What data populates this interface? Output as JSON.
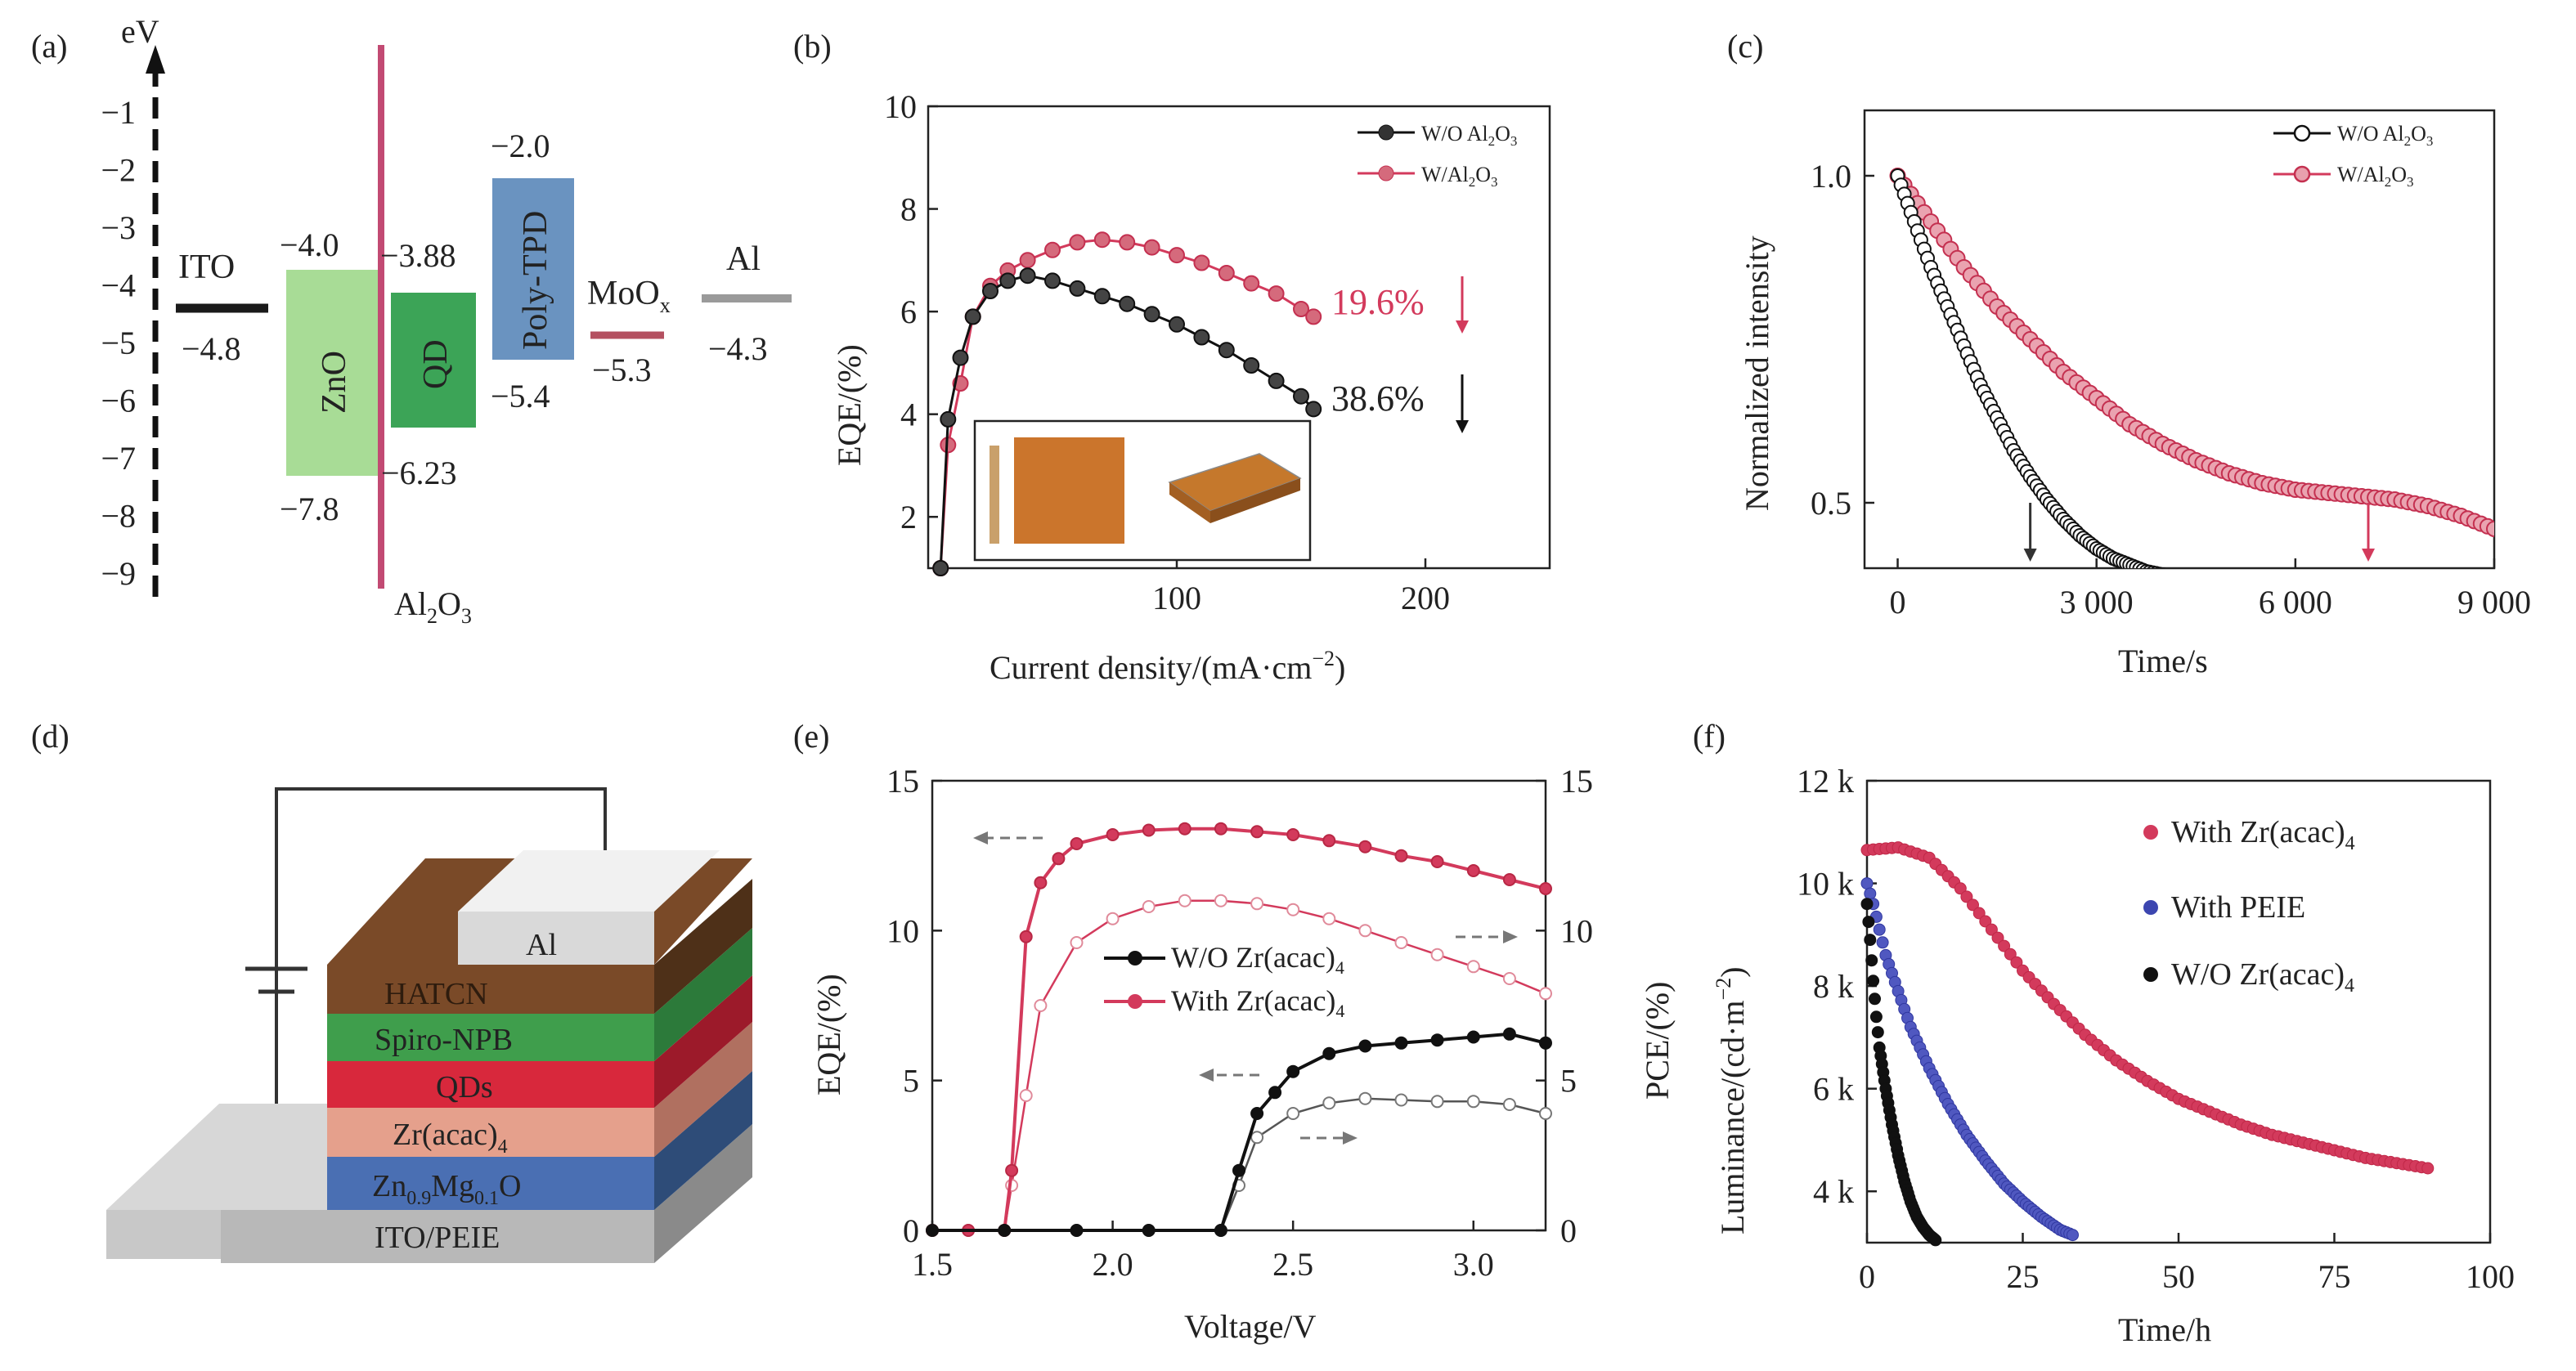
{
  "panels": {
    "a": {
      "label": "(a)",
      "y_unit": "eV",
      "ticks": [
        "−1",
        "−2",
        "−3",
        "−4",
        "−5",
        "−6",
        "−7",
        "−8",
        "−9"
      ],
      "levels": {
        "ito": {
          "name": "ITO",
          "value": "−4.8"
        },
        "zno": {
          "name": "ZnO",
          "top": "−4.0",
          "bottom": "−7.8"
        },
        "qd": {
          "name": "QD",
          "top": "−3.88",
          "bottom": "−6.23"
        },
        "ptpd": {
          "name": "Poly-TPD",
          "top": "−2.0",
          "bottom": "−5.4"
        },
        "moox": {
          "name": "MoO",
          "sub": "x",
          "value": "−5.3"
        },
        "al": {
          "name": "Al",
          "value": "−4.3"
        },
        "al2o3": {
          "a": "Al",
          "s1": "2",
          "b": "O",
          "s2": "3"
        }
      }
    },
    "b": {
      "label": "(b)",
      "ylabel": "EQE/(%)",
      "xlabel": "Current density/(mA·cm",
      "xlabel_sup": "−2",
      "xlabel_end": ")",
      "xticks": [
        "100",
        "200"
      ],
      "yticks": [
        "2",
        "4",
        "6",
        "8",
        "10"
      ],
      "legend": [
        {
          "a": "W/O Al",
          "s1": "2",
          "b": "O",
          "s2": "3"
        },
        {
          "a": "W/Al",
          "s1": "2",
          "b": "O",
          "s2": "3"
        }
      ],
      "ann_red": "19.6%",
      "ann_black": "38.6%"
    },
    "c": {
      "label": "(c)",
      "ylabel": "Normalized intensity",
      "xlabel": "Time/s",
      "xticks": [
        "0",
        "3 000",
        "6 000",
        "9 000"
      ],
      "yticks": [
        "0.5",
        "1.0"
      ],
      "legend": [
        {
          "a": "W/O Al",
          "s1": "2",
          "b": "O",
          "s2": "3"
        },
        {
          "a": "W/Al",
          "s1": "2",
          "b": "O",
          "s2": "3"
        }
      ]
    },
    "d": {
      "label": "(d)",
      "layers": {
        "al": "Al",
        "hatcn": "HATCN",
        "spiro": "Spiro-NPB",
        "qds": "QDs",
        "zr": {
          "a": "Zr(acac)",
          "s": "4"
        },
        "znmg": {
          "a": "Zn",
          "s1": "0.9",
          "b": "Mg",
          "s2": "0.1",
          "c": "O"
        },
        "ito": "ITO/PEIE"
      }
    },
    "e": {
      "label": "(e)",
      "ylabel": "EQE/(%)",
      "ylabel2": "PCE/(%)",
      "xlabel": "Voltage/V",
      "xticks": [
        "1.5",
        "2.0",
        "2.5",
        "3.0"
      ],
      "yticks": [
        "0",
        "5",
        "10",
        "15"
      ],
      "legend": [
        {
          "a": "W/O Zr(acac)",
          "s": "4"
        },
        {
          "a": "With Zr(acac)",
          "s": "4"
        }
      ]
    },
    "f": {
      "label": "(f)",
      "ylabel": "Luminance/(cd·m",
      "ylabel_sup": "−2",
      "ylabel_end": ")",
      "xlabel": "Time/h",
      "xticks": [
        "0",
        "25",
        "50",
        "75",
        "100"
      ],
      "yticks": [
        "4 k",
        "6 k",
        "8 k",
        "10 k",
        "12 k"
      ],
      "legend": [
        {
          "a": "With Zr(acac)",
          "s": "4"
        },
        {
          "a": "With PEIE",
          "s": ""
        },
        {
          "a": "W/O Zr(acac)",
          "s": "4"
        }
      ]
    }
  },
  "colors": {
    "red": "#d33a5c",
    "black": "#111111",
    "blue": "#3c46b0",
    "ito": "#1a1a1a",
    "zno": "#a8dc96",
    "qd": "#3ca457",
    "ptpd": "#6a93c0",
    "al2o3": "#c24a73",
    "moox": "#b45060",
    "al": "#9a9a9a"
  },
  "chart_data": [
    {
      "panel": "b",
      "type": "line",
      "xlabel": "Current density/(mA·cm−2)",
      "ylabel": "EQE/(%)",
      "xlim": [
        0,
        250
      ],
      "ylim": [
        1,
        10
      ],
      "series": [
        {
          "name": "W/O Al2O3",
          "x": [
            5,
            8,
            13,
            18,
            25,
            32,
            40,
            50,
            60,
            70,
            80,
            90,
            100,
            110,
            120,
            130,
            140,
            150,
            155
          ],
          "y": [
            1.0,
            3.9,
            5.1,
            5.9,
            6.4,
            6.6,
            6.7,
            6.6,
            6.45,
            6.3,
            6.15,
            5.95,
            5.75,
            5.5,
            5.25,
            4.95,
            4.65,
            4.35,
            4.1
          ]
        },
        {
          "name": "W/Al2O3",
          "x": [
            5,
            8,
            13,
            18,
            25,
            32,
            40,
            50,
            60,
            70,
            80,
            90,
            100,
            110,
            120,
            130,
            140,
            150,
            155
          ],
          "y": [
            1.0,
            3.4,
            4.6,
            5.9,
            6.5,
            6.8,
            7.0,
            7.2,
            7.35,
            7.4,
            7.35,
            7.25,
            7.1,
            6.95,
            6.75,
            6.55,
            6.35,
            6.05,
            5.9
          ]
        }
      ],
      "annotations": [
        "19.6%",
        "38.6%"
      ]
    },
    {
      "panel": "c",
      "type": "line",
      "xlabel": "Time/s",
      "ylabel": "Normalized intensity",
      "xlim": [
        -500,
        9000
      ],
      "ylim": [
        0.4,
        1.1
      ],
      "series": [
        {
          "name": "W/O Al2O3",
          "x": [
            0,
            250,
            500,
            750,
            1000,
            1250,
            1500,
            1750,
            2000,
            2250,
            2500,
            2750,
            3000,
            3250,
            3500,
            3750,
            4000,
            4200
          ],
          "y": [
            1.0,
            0.93,
            0.86,
            0.8,
            0.74,
            0.68,
            0.63,
            0.58,
            0.54,
            0.505,
            0.475,
            0.45,
            0.43,
            0.415,
            0.405,
            0.395,
            0.39,
            0.385
          ]
        },
        {
          "name": "W/Al2O3",
          "x": [
            0,
            500,
            1000,
            1500,
            2000,
            2500,
            3000,
            3500,
            4000,
            4500,
            5000,
            5500,
            6000,
            6500,
            7000,
            7500,
            8000,
            8500,
            9000
          ],
          "y": [
            1.0,
            0.93,
            0.86,
            0.8,
            0.75,
            0.7,
            0.66,
            0.62,
            0.59,
            0.565,
            0.545,
            0.53,
            0.52,
            0.515,
            0.51,
            0.505,
            0.495,
            0.48,
            0.46
          ]
        }
      ]
    },
    {
      "panel": "e",
      "type": "line",
      "xlabel": "Voltage/V",
      "ylabel": "EQE/(%)",
      "ylabel2": "PCE/(%)",
      "xlim": [
        1.5,
        3.2
      ],
      "ylim": [
        0,
        15
      ],
      "series": [
        {
          "name": "W/O Zr(acac)4 EQE",
          "x": [
            1.5,
            1.7,
            1.9,
            2.1,
            2.3,
            2.35,
            2.4,
            2.45,
            2.5,
            2.6,
            2.7,
            2.8,
            2.9,
            3.0,
            3.1,
            3.2
          ],
          "y": [
            0,
            0,
            0,
            0,
            0,
            2.0,
            3.9,
            4.6,
            5.3,
            5.9,
            6.15,
            6.25,
            6.35,
            6.45,
            6.55,
            6.25
          ]
        },
        {
          "name": "With Zr(acac)4 EQE",
          "x": [
            1.5,
            1.6,
            1.7,
            1.72,
            1.76,
            1.8,
            1.85,
            1.9,
            2.0,
            2.1,
            2.2,
            2.3,
            2.4,
            2.5,
            2.6,
            2.7,
            2.8,
            2.9,
            3.0,
            3.1,
            3.2
          ],
          "y": [
            0,
            0,
            0,
            2.0,
            9.8,
            11.6,
            12.4,
            12.9,
            13.2,
            13.35,
            13.4,
            13.4,
            13.3,
            13.2,
            13.0,
            12.8,
            12.5,
            12.3,
            12.0,
            11.7,
            11.4
          ]
        },
        {
          "name": "W/O Zr(acac)4 PCE",
          "x": [
            1.5,
            1.7,
            1.9,
            2.1,
            2.3,
            2.35,
            2.4,
            2.5,
            2.6,
            2.7,
            2.8,
            2.9,
            3.0,
            3.1,
            3.2
          ],
          "y": [
            0,
            0,
            0,
            0,
            0,
            1.5,
            3.1,
            3.9,
            4.25,
            4.4,
            4.35,
            4.3,
            4.3,
            4.2,
            3.9
          ]
        },
        {
          "name": "With Zr(acac)4 PCE",
          "x": [
            1.5,
            1.6,
            1.7,
            1.72,
            1.76,
            1.8,
            1.9,
            2.0,
            2.1,
            2.2,
            2.3,
            2.4,
            2.5,
            2.6,
            2.7,
            2.8,
            2.9,
            3.0,
            3.1,
            3.2
          ],
          "y": [
            0,
            0,
            0,
            1.5,
            4.5,
            7.5,
            9.6,
            10.4,
            10.8,
            11.0,
            11.0,
            10.9,
            10.7,
            10.4,
            10.0,
            9.6,
            9.2,
            8.8,
            8.4,
            7.9
          ]
        }
      ]
    },
    {
      "panel": "f",
      "type": "scatter",
      "xlabel": "Time/h",
      "ylabel": "Luminance/(cd·m−2)",
      "xlim": [
        0,
        100
      ],
      "ylim": [
        3000,
        12000
      ],
      "series": [
        {
          "name": "With Zr(acac)4",
          "x": [
            0,
            5,
            10,
            15,
            20,
            25,
            30,
            35,
            40,
            45,
            50,
            55,
            60,
            65,
            70,
            75,
            80,
            85,
            90
          ],
          "y": [
            10650,
            10700,
            10500,
            9900,
            9100,
            8300,
            7650,
            7050,
            6550,
            6150,
            5800,
            5550,
            5300,
            5100,
            4950,
            4800,
            4650,
            4550,
            4450
          ]
        },
        {
          "name": "With PEIE",
          "x": [
            0,
            1,
            2,
            3,
            5,
            7,
            10,
            13,
            16,
            19,
            22,
            25,
            28,
            31,
            33
          ],
          "y": [
            10000,
            9600,
            9100,
            8600,
            7900,
            7200,
            6400,
            5700,
            5100,
            4600,
            4150,
            3800,
            3500,
            3250,
            3150
          ]
        },
        {
          "name": "W/O Zr(acac)4",
          "x": [
            0,
            0.5,
            1,
            1.5,
            2,
            3,
            4,
            5,
            6,
            7,
            8,
            9,
            10,
            11
          ],
          "y": [
            9600,
            8900,
            8100,
            7400,
            6800,
            6000,
            5300,
            4700,
            4200,
            3800,
            3500,
            3300,
            3150,
            3050
          ]
        }
      ]
    }
  ]
}
